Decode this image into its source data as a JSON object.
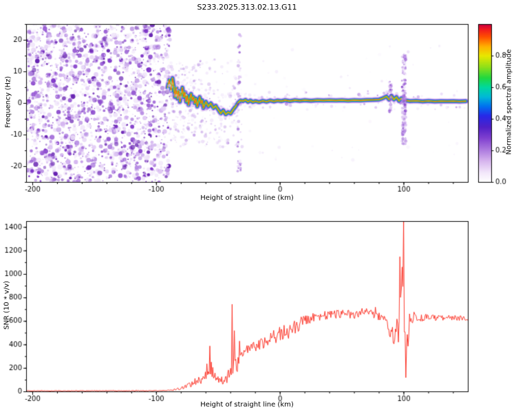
{
  "title": "S233.2025.313.02.13.G11",
  "chart_data": [
    {
      "type": "heatmap",
      "title": "S233.2025.313.02.13.G11",
      "xlabel": "Height of straight line (km)",
      "ylabel": "Frequency (Hz)",
      "xlim": [
        -205,
        152
      ],
      "ylim": [
        -25,
        25
      ],
      "xticks": [
        -200,
        -100,
        0,
        100
      ],
      "xminor": 20,
      "yticks": [
        -20,
        -10,
        0,
        10,
        20
      ],
      "yminor": 5,
      "colorbar": {
        "label": "Normalized spectral amplitude",
        "ticks": [
          0.0,
          0.2,
          0.4,
          0.6,
          0.8
        ],
        "range": [
          0,
          1
        ]
      },
      "colormap": [
        [
          0,
          "#ffffff"
        ],
        [
          0.06,
          "#f3e8fb"
        ],
        [
          0.13,
          "#d9b8ef"
        ],
        [
          0.2,
          "#b07fe0"
        ],
        [
          0.28,
          "#8040d0"
        ],
        [
          0.35,
          "#5020c8"
        ],
        [
          0.42,
          "#2828e8"
        ],
        [
          0.48,
          "#0070f0"
        ],
        [
          0.54,
          "#00b8d8"
        ],
        [
          0.6,
          "#00d8a0"
        ],
        [
          0.66,
          "#20d840"
        ],
        [
          0.73,
          "#90e018"
        ],
        [
          0.8,
          "#e8e800"
        ],
        [
          0.86,
          "#ffb000"
        ],
        [
          0.92,
          "#ff5000"
        ],
        [
          0.97,
          "#f01820"
        ],
        [
          1,
          "#c80040"
        ]
      ],
      "noise_region": {
        "x_end": -89,
        "count": 2200
      },
      "noise_colors": [
        "#f0e5fa",
        "#e2cdf5",
        "#cfadee",
        "#b488e2",
        "#9557d3",
        "#7a2fc6",
        "#5f17ad"
      ],
      "speckle_bands": [
        {
          "count": 260,
          "x0": -90,
          "x1": -30,
          "fmin": -14,
          "fmax": 14,
          "alpha": 0.38
        },
        {
          "count": 90,
          "x0": -90,
          "x1": -68,
          "fmin": -13,
          "fmax": 13,
          "alpha": 0.5
        },
        {
          "count": 55,
          "x0": -30,
          "x1": 150,
          "fmin": -20,
          "fmax": 20,
          "alpha": 0.18
        }
      ],
      "trace": [
        [
          -91,
          5
        ],
        [
          -89.5,
          7.5
        ],
        [
          -88,
          4
        ],
        [
          -87,
          8
        ],
        [
          -86,
          5.5
        ],
        [
          -85,
          2
        ],
        [
          -84,
          5
        ],
        [
          -83,
          1.5
        ],
        [
          -82,
          4
        ],
        [
          -81,
          0.5
        ],
        [
          -80,
          3
        ],
        [
          -79,
          5
        ],
        [
          -78,
          2
        ],
        [
          -77,
          3.5
        ],
        [
          -76,
          0.5
        ],
        [
          -75,
          2.5
        ],
        [
          -74,
          -0.5
        ],
        [
          -73,
          1.5
        ],
        [
          -72,
          3
        ],
        [
          -71,
          1
        ],
        [
          -70,
          2
        ],
        [
          -69,
          0
        ],
        [
          -68,
          1.5
        ],
        [
          -67,
          -1
        ],
        [
          -66,
          0.5
        ],
        [
          -65,
          2
        ],
        [
          -64,
          0
        ],
        [
          -63,
          1
        ],
        [
          -62,
          -1.5
        ],
        [
          -61,
          -0.5
        ],
        [
          -60,
          0.5
        ],
        [
          -58,
          -1
        ],
        [
          -56,
          0
        ],
        [
          -54,
          -1.5
        ],
        [
          -52,
          -0.8
        ],
        [
          -50,
          -2
        ],
        [
          -48,
          -3.2
        ],
        [
          -46,
          -2.2
        ],
        [
          -44,
          -3.5
        ],
        [
          -42,
          -2.8
        ],
        [
          -40,
          -3.2
        ],
        [
          -38,
          -2
        ],
        [
          -36,
          -1
        ],
        [
          -34,
          0.2
        ],
        [
          -32,
          0.9
        ],
        [
          -30,
          0.7
        ],
        [
          -28,
          1.1
        ],
        [
          -26,
          0.5
        ],
        [
          -24,
          0.9
        ],
        [
          -22,
          0.4
        ],
        [
          -20,
          0.7
        ],
        [
          -17,
          0.4
        ],
        [
          -14,
          0.8
        ],
        [
          -11,
          0.5
        ],
        [
          -8,
          0.9
        ],
        [
          -5,
          0.6
        ],
        [
          -2,
          0.9
        ],
        [
          1,
          0.7
        ],
        [
          4,
          1
        ],
        [
          8,
          0.7
        ],
        [
          12,
          1
        ],
        [
          16,
          0.8
        ],
        [
          20,
          1
        ],
        [
          25,
          0.8
        ],
        [
          30,
          1
        ],
        [
          35,
          0.9
        ],
        [
          40,
          1
        ],
        [
          45,
          0.9
        ],
        [
          50,
          1
        ],
        [
          55,
          0.85
        ],
        [
          60,
          1
        ],
        [
          65,
          0.9
        ],
        [
          70,
          1.05
        ],
        [
          75,
          1.1
        ],
        [
          80,
          1.2
        ],
        [
          83,
          1.6
        ],
        [
          86,
          2.2
        ],
        [
          88,
          1.2
        ],
        [
          90,
          2.4
        ],
        [
          92,
          1.2
        ],
        [
          94,
          2
        ],
        [
          96,
          0.8
        ],
        [
          98,
          1.6
        ],
        [
          100,
          0.8
        ],
        [
          102,
          0.9
        ],
        [
          105,
          0.7
        ],
        [
          110,
          0.8
        ],
        [
          115,
          0.6
        ],
        [
          120,
          0.75
        ],
        [
          125,
          0.6
        ],
        [
          130,
          0.7
        ],
        [
          135,
          0.65
        ],
        [
          140,
          0.7
        ],
        [
          145,
          0.6
        ],
        [
          150,
          0.68
        ]
      ],
      "trace_layers": [
        {
          "color": "#d9b8ef",
          "width": 9,
          "alpha": 0.5
        },
        {
          "color": "#a06fe0",
          "width": 6.8,
          "alpha": 0.7
        },
        {
          "color": "#4030e0",
          "width": 5,
          "alpha": 0.9
        },
        {
          "color": "#00a8e0",
          "width": 3.6,
          "alpha": 1
        },
        {
          "color": "#20d850",
          "width": 2.6,
          "alpha": 1
        },
        {
          "color": "#d8e800",
          "width": 1.6,
          "alpha": 1
        },
        {
          "color": "#ff3818",
          "width": 0.9,
          "alpha": 1
        }
      ],
      "trace_fuzz": {
        "count": 480,
        "spread": 2.4
      },
      "disturbances": [
        {
          "x": 100,
          "fmin": -13,
          "fmax": 16,
          "count": 160,
          "xspread": 1.6
        },
        {
          "x": 89,
          "fmin": -3,
          "fmax": 7,
          "count": 40,
          "xspread": 1.2
        },
        {
          "x": -33,
          "fmin": -22,
          "fmax": 23,
          "count": 45,
          "xspread": 1.5
        }
      ]
    },
    {
      "type": "line",
      "xlabel": "Height of straight line (km)",
      "ylabel": "SNR (10 * v/v)",
      "xlim": [
        -205,
        152
      ],
      "ylim": [
        0,
        1450
      ],
      "xticks": [
        -200,
        -100,
        0,
        100
      ],
      "xminor": 20,
      "yticks": [
        0,
        200,
        400,
        600,
        800,
        1000,
        1200,
        1400
      ],
      "yminor": 100,
      "line_color": "#fa2517",
      "sample_step": 0.6,
      "keypoints": [
        [
          -205,
          8,
          5
        ],
        [
          -120,
          8,
          5
        ],
        [
          -95,
          9,
          6
        ],
        [
          -90,
          12,
          8
        ],
        [
          -86,
          18,
          12
        ],
        [
          -82,
          28,
          20
        ],
        [
          -78,
          45,
          35
        ],
        [
          -74,
          60,
          45
        ],
        [
          -70,
          75,
          55
        ],
        [
          -66,
          95,
          65
        ],
        [
          -62,
          120,
          80
        ],
        [
          -59,
          180,
          120
        ],
        [
          -57,
          240,
          140
        ],
        [
          -55,
          190,
          110
        ],
        [
          -53,
          140,
          90
        ],
        [
          -51,
          120,
          70
        ],
        [
          -49,
          105,
          60
        ],
        [
          -47,
          95,
          55
        ],
        [
          -45,
          85,
          50
        ],
        [
          -43,
          110,
          70
        ],
        [
          -41,
          150,
          110
        ],
        [
          -39,
          220,
          180
        ],
        [
          -37,
          180,
          120
        ],
        [
          -35,
          230,
          130
        ],
        [
          -33,
          290,
          120
        ],
        [
          -31,
          320,
          100
        ],
        [
          -28,
          345,
          90
        ],
        [
          -24,
          365,
          85
        ],
        [
          -20,
          385,
          85
        ],
        [
          -16,
          405,
          90
        ],
        [
          -12,
          425,
          95
        ],
        [
          -8,
          445,
          105
        ],
        [
          -4,
          465,
          115
        ],
        [
          0,
          480,
          120
        ],
        [
          4,
          505,
          115
        ],
        [
          8,
          520,
          105
        ],
        [
          12,
          545,
          95
        ],
        [
          16,
          575,
          90
        ],
        [
          20,
          605,
          85
        ],
        [
          25,
          630,
          75
        ],
        [
          30,
          645,
          70
        ],
        [
          40,
          655,
          60
        ],
        [
          50,
          662,
          58
        ],
        [
          60,
          656,
          55
        ],
        [
          70,
          668,
          58
        ],
        [
          78,
          655,
          60
        ],
        [
          83,
          625,
          70
        ],
        [
          86,
          585,
          85
        ],
        [
          89,
          530,
          120
        ],
        [
          91,
          470,
          170
        ],
        [
          93,
          420,
          220
        ],
        [
          95,
          560,
          330
        ],
        [
          97,
          750,
          430
        ],
        [
          99,
          1050,
          380
        ],
        [
          100,
          900,
          400
        ],
        [
          101,
          420,
          300
        ],
        [
          102,
          250,
          180
        ],
        [
          103,
          420,
          280
        ],
        [
          104,
          560,
          200
        ],
        [
          106,
          640,
          120
        ],
        [
          110,
          625,
          55
        ],
        [
          120,
          632,
          40
        ],
        [
          130,
          626,
          38
        ],
        [
          140,
          633,
          38
        ],
        [
          150,
          622,
          40
        ]
      ],
      "spikes": [
        [
          -57,
          390
        ],
        [
          -39,
          745
        ],
        [
          -37,
          520
        ],
        [
          96.5,
          1150
        ],
        [
          98,
          880
        ],
        [
          100,
          1450
        ],
        [
          101.5,
          120
        ]
      ]
    }
  ]
}
